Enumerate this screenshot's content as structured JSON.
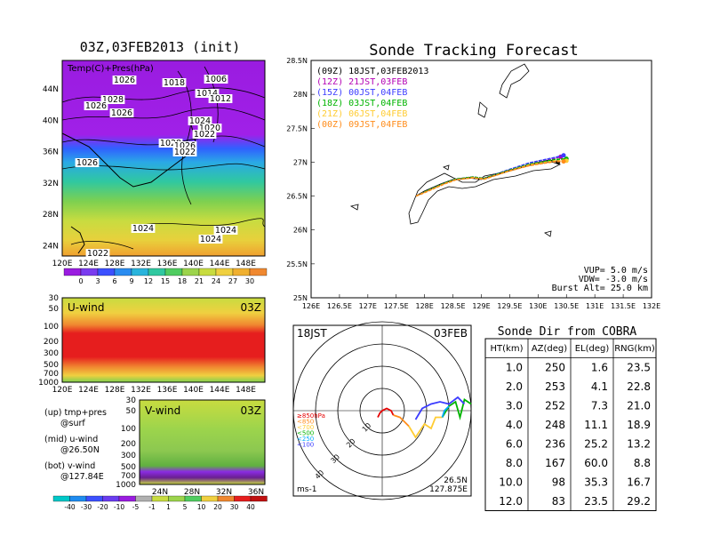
{
  "left": {
    "title": "03Z,03FEB2013 (init)",
    "top_panel_label": "Temp(C)+Pres(hPa)",
    "pressure_labels": [
      "1026",
      "1018",
      "1006",
      "1028",
      "1014",
      "1026",
      "1012",
      "1026",
      "1024",
      "1020",
      "1028",
      "1022",
      "1026",
      "1022",
      "1026",
      "1024",
      "1024",
      "1024",
      "1022"
    ],
    "lat_ticks": [
      "44N",
      "40N",
      "36N",
      "32N",
      "28N",
      "24N"
    ],
    "lon_ticks": [
      "120E",
      "124E",
      "128E",
      "132E",
      "136E",
      "140E",
      "144E",
      "148E"
    ],
    "temp_colorbar": [
      "0",
      "3",
      "6",
      "9",
      "12",
      "15",
      "18",
      "21",
      "24",
      "27",
      "30"
    ],
    "uwind": {
      "label": "U-wind",
      "time": "03Z",
      "levels": [
        "30",
        "50",
        "100",
        "200",
        "300",
        "500",
        "700",
        "1000"
      ]
    },
    "vwind": {
      "label": "V-wind",
      "time": "03Z",
      "levels": [
        "30",
        "50",
        "100",
        "200",
        "300",
        "500",
        "700",
        "1000"
      ],
      "lat_ticks": [
        "24N",
        "28N",
        "32N",
        "36N"
      ]
    },
    "wind_colorbar": [
      "-40",
      "-30",
      "-20",
      "-10",
      "-5",
      "-1",
      "1",
      "5",
      "10",
      "20",
      "30",
      "40"
    ],
    "notes": [
      {
        "a": "(up) tmp+pres",
        "b": "@surf"
      },
      {
        "a": "(mid) u-wind",
        "b": "@26.50N"
      },
      {
        "a": "(bot) v-wind",
        "b": "@127.84E"
      }
    ]
  },
  "tracking": {
    "title": "Sonde Tracking Forecast",
    "lat_ticks": [
      "28.5N",
      "28N",
      "27.5N",
      "27N",
      "26.5N",
      "26N",
      "25.5N",
      "25N"
    ],
    "lon_ticks": [
      "126E",
      "126.5E",
      "127E",
      "127.5E",
      "128E",
      "128.5E",
      "129E",
      "129.5E",
      "130E",
      "130.5E",
      "131E",
      "131.5E",
      "132E"
    ],
    "legend": [
      {
        "text": "(09Z) 18JST,03FEB2013",
        "color": "#000000"
      },
      {
        "text": "(12Z) 21JST,03FEB",
        "color": "#b400b4"
      },
      {
        "text": "(15Z) 00JST,04FEB",
        "color": "#3c3cff"
      },
      {
        "text": "(18Z) 03JST,04FEB",
        "color": "#00b400"
      },
      {
        "text": "(21Z) 06JST,04FEB",
        "color": "#ffcc33"
      },
      {
        "text": "(00Z) 09JST,04FEB",
        "color": "#ff8c1a"
      }
    ],
    "params": [
      "VUP= 5.0 m/s",
      "VDW= -3.0 m/s",
      "Burst Alt= 25.0 km"
    ]
  },
  "hodo": {
    "time": "18JST",
    "date": "03FEB",
    "rings": [
      "10",
      "20",
      "30",
      "40"
    ],
    "legend": [
      {
        "text": "≥850hPa",
        "color": "#e60000"
      },
      {
        "text": "<850",
        "color": "#ff8c1a"
      },
      {
        "text": "<700",
        "color": "#ffcc33"
      },
      {
        "text": "<500",
        "color": "#00b400"
      },
      {
        "text": "<250",
        "color": "#00aaff"
      },
      {
        "text": "<100",
        "color": "#3c3cff"
      }
    ],
    "unit": "ms-1",
    "loc1": "26.5N",
    "loc2": "127.875E"
  },
  "table": {
    "title": "Sonde Dir from COBRA",
    "headers": [
      "HT(km)",
      "AZ(deg)",
      "EL(deg)",
      "RNG(km)"
    ],
    "rows": [
      [
        "1.0",
        "250",
        "1.6",
        "23.5"
      ],
      [
        "2.0",
        "253",
        "4.1",
        "22.8"
      ],
      [
        "3.0",
        "252",
        "7.3",
        "21.0"
      ],
      [
        "4.0",
        "248",
        "11.1",
        "18.9"
      ],
      [
        "6.0",
        "236",
        "25.2",
        "13.2"
      ],
      [
        "8.0",
        "167",
        "60.0",
        "8.8"
      ],
      [
        "10.0",
        "98",
        "35.3",
        "16.7"
      ],
      [
        "12.0",
        "83",
        "23.5",
        "29.2"
      ]
    ]
  },
  "chart_data": [
    {
      "type": "line",
      "title": "Sonde Tracking Forecast",
      "xlim": [
        126,
        132
      ],
      "ylim": [
        25,
        28.5
      ],
      "series": [
        {
          "name": "(09Z) 18JST,03FEB2013",
          "x": [
            127.85,
            128.0,
            128.3,
            128.5,
            128.8,
            129.0,
            129.4,
            129.8,
            130.2,
            130.35
          ],
          "y": [
            26.5,
            26.57,
            26.68,
            26.74,
            26.77,
            26.75,
            26.85,
            26.95,
            27.03,
            27.0
          ]
        },
        {
          "name": "(12Z) 21JST,03FEB",
          "x": [
            127.85,
            128.05,
            128.35,
            128.55,
            128.85,
            129.05,
            129.45,
            129.85,
            130.25,
            130.4
          ],
          "y": [
            26.5,
            26.58,
            26.69,
            26.75,
            26.78,
            26.76,
            26.87,
            26.97,
            27.05,
            27.08
          ]
        },
        {
          "name": "(15Z) 00JST,04FEB",
          "x": [
            127.85,
            128.05,
            128.35,
            128.55,
            128.85,
            129.05,
            129.45,
            129.85,
            130.3,
            130.45
          ],
          "y": [
            26.5,
            26.58,
            26.69,
            26.75,
            26.78,
            26.76,
            26.88,
            26.99,
            27.07,
            27.1
          ]
        },
        {
          "name": "(18Z) 03JST,04FEB",
          "x": [
            127.85,
            128.05,
            128.35,
            128.55,
            128.85,
            129.05,
            129.45,
            129.85,
            130.3,
            130.5
          ],
          "y": [
            26.5,
            26.58,
            26.69,
            26.75,
            26.78,
            26.76,
            26.87,
            26.97,
            27.04,
            27.05
          ]
        },
        {
          "name": "(21Z) 06JST,04FEB",
          "x": [
            127.85,
            128.05,
            128.35,
            128.55,
            128.85,
            129.05,
            129.45,
            129.85,
            130.3,
            130.5
          ],
          "y": [
            26.5,
            26.57,
            26.68,
            26.74,
            26.77,
            26.75,
            26.86,
            26.96,
            27.02,
            27.02
          ]
        },
        {
          "name": "(00Z) 09JST,04FEB",
          "x": [
            127.85,
            128.05,
            128.35,
            128.55,
            128.85,
            129.05,
            129.45,
            129.85,
            130.3,
            130.45
          ],
          "y": [
            26.5,
            26.57,
            26.68,
            26.74,
            26.77,
            26.75,
            26.86,
            26.95,
            27.01,
            27.01
          ]
        }
      ]
    },
    {
      "type": "table",
      "title": "Sonde Dir from COBRA",
      "columns": [
        "HT(km)",
        "AZ(deg)",
        "EL(deg)",
        "RNG(km)"
      ],
      "rows": [
        [
          1.0,
          250,
          1.6,
          23.5
        ],
        [
          2.0,
          253,
          4.1,
          22.8
        ],
        [
          3.0,
          252,
          7.3,
          21.0
        ],
        [
          4.0,
          248,
          11.1,
          18.9
        ],
        [
          6.0,
          236,
          25.2,
          13.2
        ],
        [
          8.0,
          167,
          60.0,
          8.8
        ],
        [
          10.0,
          98,
          35.3,
          16.7
        ],
        [
          12.0,
          83,
          23.5,
          29.2
        ]
      ]
    },
    {
      "type": "line",
      "title": "hodograph",
      "unit": "ms-1",
      "rings": [
        10,
        20,
        30,
        40
      ],
      "series": [
        {
          "name": "≥850hPa",
          "u": [
            -2,
            -1,
            0,
            2,
            4,
            5
          ],
          "v": [
            -3,
            -1,
            0,
            1,
            0,
            -2
          ]
        },
        {
          "name": "<850",
          "u": [
            5,
            8,
            10,
            12
          ],
          "v": [
            -2,
            -3,
            -5,
            -7
          ]
        },
        {
          "name": "<700",
          "u": [
            12,
            15,
            19,
            22,
            24,
            27
          ],
          "v": [
            -7,
            -12,
            -6,
            -8,
            -3,
            -3
          ]
        },
        {
          "name": "<500",
          "u": [
            27,
            30,
            33,
            35,
            37,
            40
          ],
          "v": [
            -3,
            2,
            4,
            -3,
            5,
            3
          ]
        },
        {
          "name": "<250",
          "u": [
            27,
            28,
            30
          ],
          "v": [
            -3,
            0,
            2
          ]
        },
        {
          "name": "<100",
          "u": [
            15,
            18,
            22,
            26,
            30,
            34,
            37
          ],
          "v": [
            -4,
            1,
            3,
            4,
            3,
            6,
            3
          ]
        }
      ]
    }
  ]
}
